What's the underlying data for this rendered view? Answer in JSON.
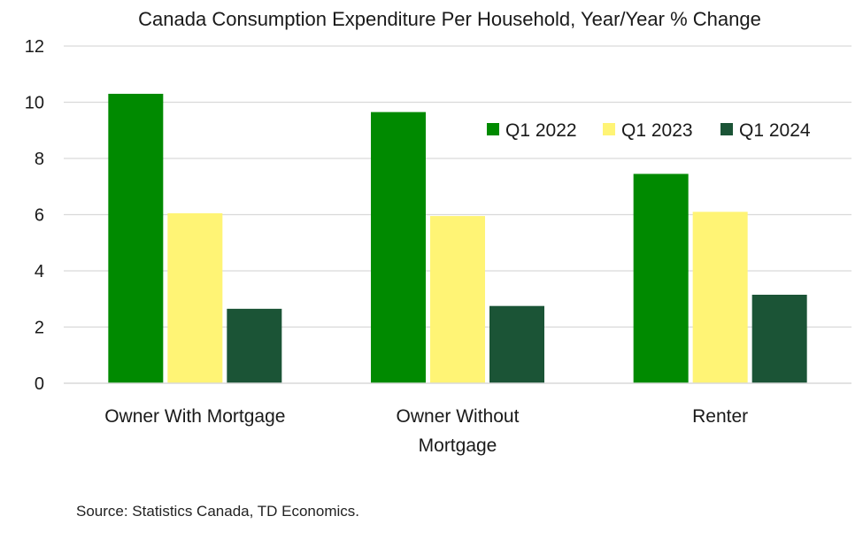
{
  "chart_data": {
    "type": "bar",
    "title": "Canada Consumption Expenditure Per Household, Year/Year % Change",
    "categories": [
      [
        "Owner With Mortgage"
      ],
      [
        "Owner Without",
        "Mortgage"
      ],
      [
        "Renter"
      ]
    ],
    "series": [
      {
        "name": "Q1 2022",
        "color": "#008a00",
        "values": [
          10.3,
          9.65,
          7.45
        ]
      },
      {
        "name": "Q1 2023",
        "color": "#fff475",
        "values": [
          6.05,
          5.95,
          6.1
        ]
      },
      {
        "name": "Q1 2024",
        "color": "#1b5436",
        "values": [
          2.65,
          2.75,
          3.15
        ]
      }
    ],
    "ylim": [
      0,
      12
    ],
    "yticks": [
      0,
      2,
      4,
      6,
      8,
      10,
      12
    ],
    "grid": true,
    "legend_position": "top-right",
    "xlabel": "",
    "ylabel": ""
  },
  "source": "Source: Statistics Canada, TD Economics."
}
